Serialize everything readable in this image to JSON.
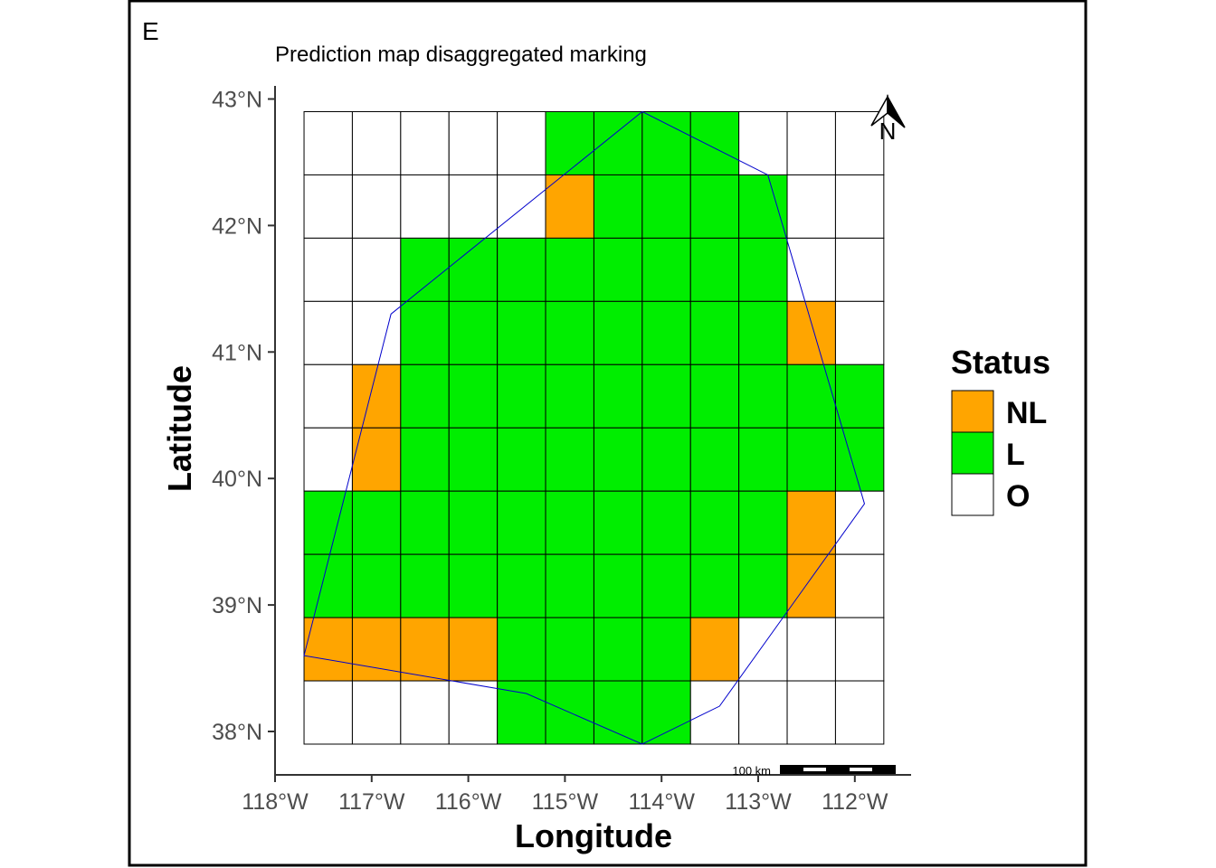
{
  "panel_label": "E",
  "title": "Prediction map disaggregated marking",
  "axes": {
    "x_title": "Longitude",
    "y_title": "Latitude",
    "x_ticks": [
      "118°W",
      "117°W",
      "116°W",
      "115°W",
      "114°W",
      "113°W",
      "112°W"
    ],
    "y_ticks": [
      "43°N",
      "42°N",
      "41°N",
      "40°N",
      "39°N",
      "38°N"
    ]
  },
  "colors": {
    "NL": "#FFA500",
    "L": "#00EE00",
    "O": "#FFFFFF",
    "boundary": "#0000CC",
    "grid": "#000000"
  },
  "legend": {
    "title": "Status",
    "items": [
      {
        "key": "NL",
        "label": "NL"
      },
      {
        "key": "L",
        "label": "L"
      },
      {
        "key": "O",
        "label": "O"
      }
    ]
  },
  "scale_bar": {
    "label": "100 km"
  },
  "north_arrow": {
    "label": "N"
  },
  "map_data": {
    "grid_bounds": {
      "lon": [
        -117.7,
        -111.7
      ],
      "lat": [
        37.9,
        42.9
      ]
    },
    "cell_size_deg": {
      "lon": 0.5,
      "lat": 0.5
    },
    "rows_north_to_south": [
      [
        "O",
        "O",
        "O",
        "O",
        "O",
        "L",
        "L",
        "L",
        "L",
        "O",
        "O",
        "O"
      ],
      [
        "O",
        "O",
        "O",
        "O",
        "O",
        "NL",
        "L",
        "L",
        "L",
        "L",
        "O",
        "O"
      ],
      [
        "O",
        "O",
        "L",
        "L",
        "L",
        "L",
        "L",
        "L",
        "L",
        "L",
        "O",
        "O"
      ],
      [
        "O",
        "O",
        "L",
        "L",
        "L",
        "L",
        "L",
        "L",
        "L",
        "L",
        "NL",
        "O"
      ],
      [
        "O",
        "NL",
        "L",
        "L",
        "L",
        "L",
        "L",
        "L",
        "L",
        "L",
        "L",
        "L"
      ],
      [
        "O",
        "NL",
        "L",
        "L",
        "L",
        "L",
        "L",
        "L",
        "L",
        "L",
        "L",
        "L"
      ],
      [
        "L",
        "L",
        "L",
        "L",
        "L",
        "L",
        "L",
        "L",
        "L",
        "L",
        "NL",
        "O"
      ],
      [
        "L",
        "L",
        "L",
        "L",
        "L",
        "L",
        "L",
        "L",
        "L",
        "L",
        "NL",
        "O"
      ],
      [
        "NL",
        "NL",
        "NL",
        "NL",
        "L",
        "L",
        "L",
        "L",
        "NL",
        "O",
        "O",
        "O"
      ],
      [
        "O",
        "O",
        "O",
        "O",
        "L",
        "L",
        "L",
        "L",
        "O",
        "O",
        "O",
        "O"
      ]
    ],
    "boundary_lonlat": [
      [
        -114.2,
        42.9
      ],
      [
        -112.9,
        42.4
      ],
      [
        -111.9,
        39.8
      ],
      [
        -113.4,
        38.2
      ],
      [
        -114.2,
        37.9
      ],
      [
        -115.4,
        38.3
      ],
      [
        -117.7,
        38.6
      ],
      [
        -116.8,
        41.3
      ],
      [
        -114.2,
        42.9
      ]
    ]
  }
}
